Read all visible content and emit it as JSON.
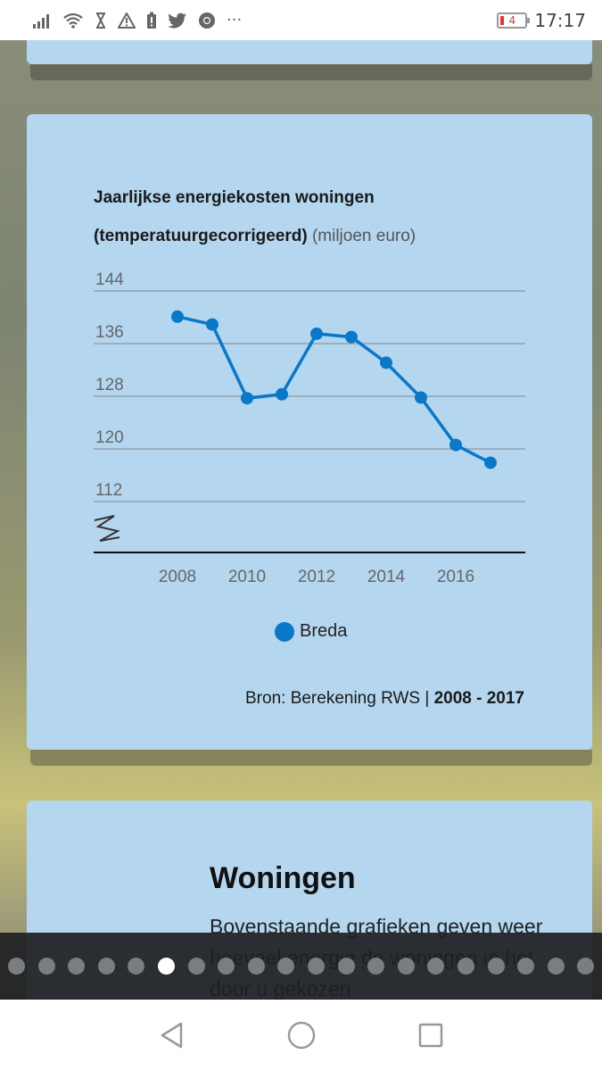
{
  "status_bar": {
    "time": "17:17",
    "battery_level": "4",
    "icons": [
      "signal-icon",
      "wifi-icon",
      "hourglass-icon",
      "warning-icon",
      "battery-alert-icon",
      "twitter-icon",
      "chrome-icon",
      "more-icon"
    ],
    "more_text": "···"
  },
  "chart_card": {
    "title_bold_1": "Jaarlijkse energiekosten woningen",
    "title_bold_2": "(temperatuurgecorrigeerd)",
    "title_unit": "(miljoen euro)",
    "legend_label": "Breda",
    "source_prefix": "Bron: Berekening RWS |",
    "source_period": "2008 - 2017"
  },
  "chart_data": {
    "type": "line",
    "title": "Jaarlijkse energiekosten woningen (temperatuurgecorrigeerd)",
    "ylabel": "(miljoen euro)",
    "x": [
      2008,
      2009,
      2010,
      2011,
      2012,
      2013,
      2014,
      2015,
      2016,
      2017
    ],
    "series": [
      {
        "name": "Breda",
        "values": [
          140.1,
          138.9,
          127.7,
          128.3,
          137.5,
          137.0,
          133.1,
          127.8,
          120.6,
          117.9
        ]
      }
    ],
    "yticks": [
      112,
      120,
      128,
      136,
      144
    ],
    "xticks": [
      2008,
      2010,
      2012,
      2014,
      2016
    ],
    "ylim": [
      112,
      144
    ],
    "xlim": [
      2008,
      2017
    ],
    "axis_break": true,
    "grid": true,
    "legend": "bottom-center",
    "color": "#0a78c8"
  },
  "text_card": {
    "title": "Woningen",
    "body": "Bovenstaande grafieken geven weer hoeveel energie de woningen in het door u gekozen"
  },
  "pager": {
    "count": 20,
    "active_index": 5
  },
  "nav_bar": {
    "buttons": [
      "back-icon",
      "home-icon",
      "recents-icon"
    ]
  }
}
